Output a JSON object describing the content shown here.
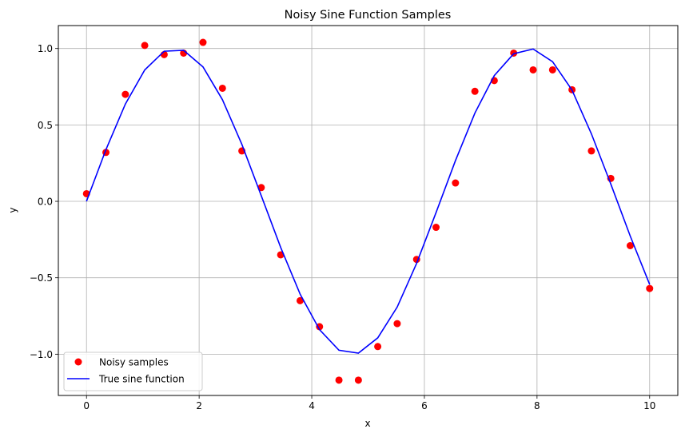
{
  "chart_data": {
    "type": "scatter",
    "title": "Noisy Sine Function Samples",
    "xlabel": "x",
    "ylabel": "y",
    "xlim": [
      -0.5,
      10.5
    ],
    "ylim": [
      -1.27,
      1.15
    ],
    "xticks": [
      0,
      2,
      4,
      6,
      8,
      10
    ],
    "xtick_labels": [
      "0",
      "2",
      "4",
      "6",
      "8",
      "10"
    ],
    "yticks": [
      -1.0,
      -0.5,
      0.0,
      0.5,
      1.0
    ],
    "ytick_labels": [
      "−1.0",
      "−0.5",
      "0.0",
      "0.5",
      "1.0"
    ],
    "grid": true,
    "legend_position": "lower-left",
    "series": [
      {
        "name": "Noisy samples",
        "kind": "scatter",
        "color": "#ff0000",
        "x": [
          0.0,
          0.345,
          0.69,
          1.034,
          1.379,
          1.724,
          2.069,
          2.414,
          2.759,
          3.103,
          3.448,
          3.793,
          4.138,
          4.483,
          4.828,
          5.172,
          5.517,
          5.862,
          6.207,
          6.552,
          6.897,
          7.241,
          7.586,
          7.931,
          8.276,
          8.621,
          8.966,
          9.31,
          9.655,
          10.0
        ],
        "y": [
          0.05,
          0.32,
          0.7,
          1.02,
          0.96,
          0.97,
          1.04,
          0.74,
          0.33,
          0.09,
          -0.35,
          -0.65,
          -0.82,
          -1.17,
          -1.17,
          -0.95,
          -0.8,
          -0.38,
          -0.17,
          0.12,
          0.72,
          0.79,
          0.97,
          0.86,
          0.86,
          0.73,
          0.33,
          0.15,
          -0.29,
          -0.57
        ]
      },
      {
        "name": "True sine function",
        "kind": "line",
        "color": "#0000ff",
        "x": [
          0.0,
          0.345,
          0.69,
          1.034,
          1.379,
          1.724,
          2.069,
          2.414,
          2.759,
          3.103,
          3.448,
          3.793,
          4.138,
          4.483,
          4.828,
          5.172,
          5.517,
          5.862,
          6.207,
          6.552,
          6.897,
          7.241,
          7.586,
          7.931,
          8.276,
          8.621,
          8.966,
          9.31,
          9.655,
          10.0
        ],
        "y": [
          0.0,
          0.338,
          0.636,
          0.86,
          0.982,
          0.988,
          0.879,
          0.665,
          0.373,
          0.038,
          -0.302,
          -0.607,
          -0.84,
          -0.974,
          -0.993,
          -0.893,
          -0.692,
          -0.406,
          -0.074,
          0.266,
          0.578,
          0.823,
          0.966,
          0.997,
          0.914,
          0.728,
          0.442,
          0.113,
          -0.227,
          -0.544
        ]
      }
    ]
  }
}
